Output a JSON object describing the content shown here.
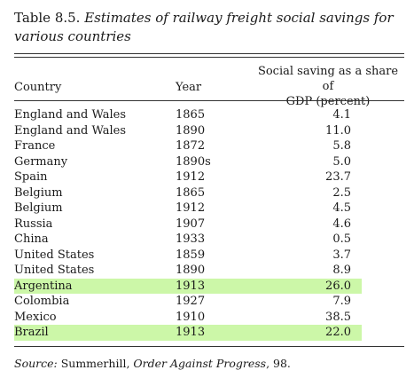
{
  "caption": {
    "number": "Table 8.5.",
    "title": "Estimates of railway freight social savings for various countries"
  },
  "headers": {
    "country": "Country",
    "year": "Year",
    "share_line1": "Social saving as a share of",
    "share_line2": "GDP (percent)"
  },
  "rows": [
    {
      "country": "England and Wales",
      "year": "1865",
      "value": "4.1",
      "highlight": false
    },
    {
      "country": "England and Wales",
      "year": "1890",
      "value": "11.0",
      "highlight": false
    },
    {
      "country": "France",
      "year": "1872",
      "value": "5.8",
      "highlight": false
    },
    {
      "country": "Germany",
      "year": "1890s",
      "value": "5.0",
      "highlight": false
    },
    {
      "country": "Spain",
      "year": "1912",
      "value": "23.7",
      "highlight": false
    },
    {
      "country": "Belgium",
      "year": "1865",
      "value": "2.5",
      "highlight": false
    },
    {
      "country": "Belgium",
      "year": "1912",
      "value": "4.5",
      "highlight": false
    },
    {
      "country": "Russia",
      "year": "1907",
      "value": "4.6",
      "highlight": false
    },
    {
      "country": "China",
      "year": "1933",
      "value": "0.5",
      "highlight": false
    },
    {
      "country": "United States",
      "year": "1859",
      "value": "3.7",
      "highlight": false
    },
    {
      "country": "United States",
      "year": "1890",
      "value": "8.9",
      "highlight": false
    },
    {
      "country": "Argentina",
      "year": "1913",
      "value": "26.0",
      "highlight": true
    },
    {
      "country": "Colombia",
      "year": "1927",
      "value": "7.9",
      "highlight": false
    },
    {
      "country": "Mexico",
      "year": "1910",
      "value": "38.5",
      "highlight": false
    },
    {
      "country": "Brazil",
      "year": "1913",
      "value": "22.0",
      "highlight": true
    }
  ],
  "source": {
    "label": "Source:",
    "author": "Summerhill,",
    "work": "Order Against Progress",
    "page": ", 98."
  },
  "colors": {
    "highlight": "#ccf7a8"
  }
}
